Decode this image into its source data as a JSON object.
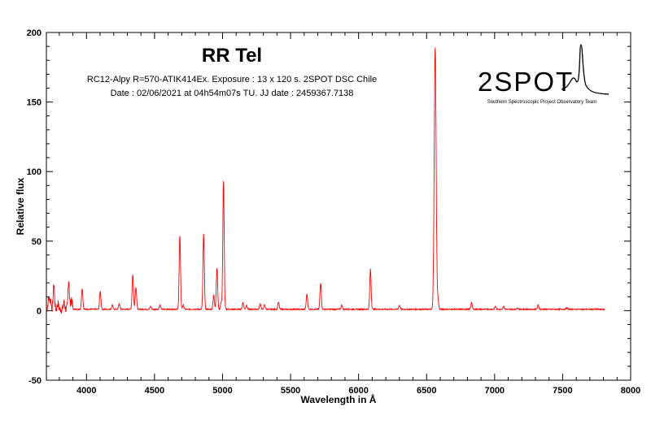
{
  "chart_data": {
    "type": "line",
    "title": "RR Tel",
    "subtitle_lines": [
      "RC12-Alpy R=570-ATIK414Ex. Exposure : 13 x 120 s. 2SPOT DSC Chile",
      "Date : 02/06/2021 at 04h54m07s TU. JJ date : 2459367.7138"
    ],
    "xlabel": "Wavelength in Å",
    "ylabel": "Relative flux",
    "xlim": [
      3705,
      8000
    ],
    "ylim": [
      -50,
      200
    ],
    "x_ticks": [
      4000,
      4500,
      5000,
      5500,
      6000,
      6500,
      7000,
      7500,
      8000
    ],
    "y_ticks": [
      -50,
      0,
      50,
      100,
      150,
      200
    ],
    "grid": false,
    "series_color": "#ff0000",
    "spectrum_range": [
      3705,
      7810
    ],
    "baseline": 1,
    "emission_lines": [
      {
        "wavelength": 3722,
        "peak": 8
      },
      {
        "wavelength": 3735,
        "peak": 7
      },
      {
        "wavelength": 3760,
        "peak": 18
      },
      {
        "wavelength": 3790,
        "peak": 4
      },
      {
        "wavelength": 3835,
        "peak": 5
      },
      {
        "wavelength": 3869,
        "peak": 21
      },
      {
        "wavelength": 3889,
        "peak": 8
      },
      {
        "wavelength": 3968,
        "peak": 15
      },
      {
        "wavelength": 4101,
        "peak": 13
      },
      {
        "wavelength": 4190,
        "peak": 3
      },
      {
        "wavelength": 4240,
        "peak": 4
      },
      {
        "wavelength": 4340,
        "peak": 25
      },
      {
        "wavelength": 4363,
        "peak": 16
      },
      {
        "wavelength": 4471,
        "peak": 2
      },
      {
        "wavelength": 4540,
        "peak": 3
      },
      {
        "wavelength": 4686,
        "peak": 53
      },
      {
        "wavelength": 4711,
        "peak": 3
      },
      {
        "wavelength": 4861,
        "peak": 54
      },
      {
        "wavelength": 4935,
        "peak": 10
      },
      {
        "wavelength": 4959,
        "peak": 30
      },
      {
        "wavelength": 4990,
        "peak": 5
      },
      {
        "wavelength": 5007,
        "peak": 92
      },
      {
        "wavelength": 5150,
        "peak": 5
      },
      {
        "wavelength": 5176,
        "peak": 3
      },
      {
        "wavelength": 5277,
        "peak": 4
      },
      {
        "wavelength": 5309,
        "peak": 3
      },
      {
        "wavelength": 5411,
        "peak": 5
      },
      {
        "wavelength": 5620,
        "peak": 11
      },
      {
        "wavelength": 5721,
        "peak": 19
      },
      {
        "wavelength": 5876,
        "peak": 3
      },
      {
        "wavelength": 6087,
        "peak": 29
      },
      {
        "wavelength": 6300,
        "peak": 3
      },
      {
        "wavelength": 6563,
        "peak": 188
      },
      {
        "wavelength": 6583,
        "peak": 7
      },
      {
        "wavelength": 6830,
        "peak": 5
      },
      {
        "wavelength": 7006,
        "peak": 2
      },
      {
        "wavelength": 7065,
        "peak": 2
      },
      {
        "wavelength": 7170,
        "peak": 1
      },
      {
        "wavelength": 7320,
        "peak": 3
      },
      {
        "wavelength": 7530,
        "peak": 1
      }
    ]
  },
  "logo": {
    "text": "2SPOT",
    "tagline": "Southern Spectroscopic Project Observatory Team"
  }
}
